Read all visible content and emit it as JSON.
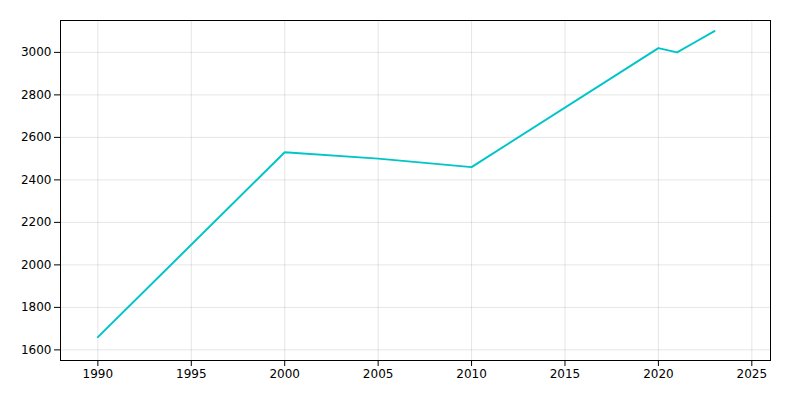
{
  "chart_data": {
    "type": "line",
    "x": [
      1990,
      2000,
      2005,
      2010,
      2020,
      2021,
      2022,
      2023
    ],
    "values": [
      1660,
      2530,
      2500,
      2460,
      3020,
      3000,
      3050,
      3100
    ],
    "color": "#00C5C8",
    "xlim": [
      1988,
      2026
    ],
    "xticks": [
      1990,
      1995,
      2000,
      2005,
      2010,
      2015,
      2020,
      2025
    ],
    "ylim": [
      1550,
      3150
    ],
    "yticks": [
      1600,
      1800,
      2000,
      2200,
      2400,
      2600,
      2800,
      3000
    ],
    "grid": true
  }
}
